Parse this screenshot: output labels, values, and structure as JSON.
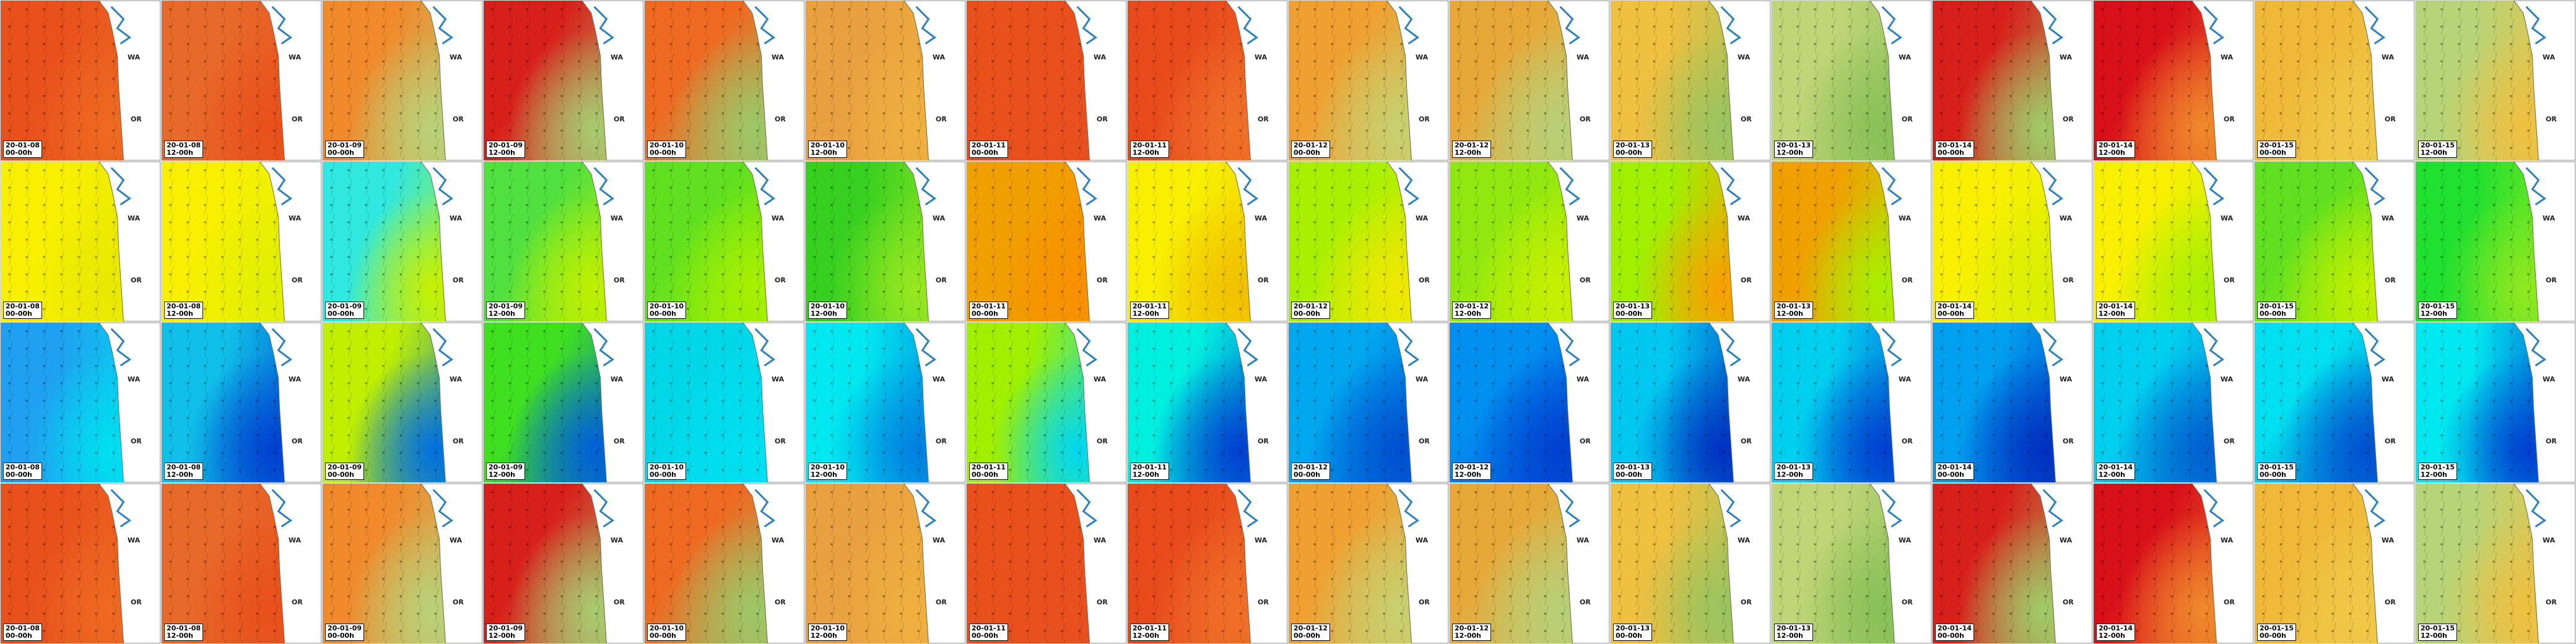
{
  "map_labels": {
    "state_north": "WA",
    "state_south": "OR"
  },
  "rows": [
    {
      "tiles": [
        {
          "date": "20-01-08",
          "time": "00-00h"
        },
        {
          "date": "20-01-08",
          "time": "12-00h"
        },
        {
          "date": "20-01-09",
          "time": "00-00h"
        },
        {
          "date": "20-01-09",
          "time": "12-00h"
        },
        {
          "date": "20-01-10",
          "time": "00-00h"
        },
        {
          "date": "20-01-10",
          "time": "12-00h"
        },
        {
          "date": "20-01-11",
          "time": "00-00h"
        },
        {
          "date": "20-01-11",
          "time": "12-00h"
        },
        {
          "date": "20-01-12",
          "time": "00-00h"
        },
        {
          "date": "20-01-12",
          "time": "12-00h"
        },
        {
          "date": "20-01-13",
          "time": "00-00h"
        },
        {
          "date": "20-01-13",
          "time": "12-00h"
        },
        {
          "date": "20-01-14",
          "time": "00-00h"
        },
        {
          "date": "20-01-14",
          "time": "12-00h"
        },
        {
          "date": "20-01-15",
          "time": "00-00h"
        },
        {
          "date": "20-01-15",
          "time": "12-00h"
        }
      ]
    },
    {
      "tiles": [
        {
          "date": "20-01-08",
          "time": "00-00h"
        },
        {
          "date": "20-01-08",
          "time": "12-00h"
        },
        {
          "date": "20-01-09",
          "time": "00-00h"
        },
        {
          "date": "20-01-09",
          "time": "12-00h"
        },
        {
          "date": "20-01-10",
          "time": "00-00h"
        },
        {
          "date": "20-01-10",
          "time": "12-00h"
        },
        {
          "date": "20-01-11",
          "time": "00-00h"
        },
        {
          "date": "20-01-11",
          "time": "12-00h"
        },
        {
          "date": "20-01-12",
          "time": "00-00h"
        },
        {
          "date": "20-01-12",
          "time": "12-00h"
        },
        {
          "date": "20-01-13",
          "time": "00-00h"
        },
        {
          "date": "20-01-13",
          "time": "12-00h"
        },
        {
          "date": "20-01-14",
          "time": "00-00h"
        },
        {
          "date": "20-01-14",
          "time": "12-00h"
        },
        {
          "date": "20-01-15",
          "time": "00-00h"
        },
        {
          "date": "20-01-15",
          "time": "12-00h"
        }
      ]
    },
    {
      "tiles": [
        {
          "date": "20-01-08",
          "time": "00-00h"
        },
        {
          "date": "20-01-08",
          "time": "12-00h"
        },
        {
          "date": "20-01-09",
          "time": "00-00h"
        },
        {
          "date": "20-01-09",
          "time": "12-00h"
        },
        {
          "date": "20-01-10",
          "time": "00-00h"
        },
        {
          "date": "20-01-10",
          "time": "12-00h"
        },
        {
          "date": "20-01-11",
          "time": "00-00h"
        },
        {
          "date": "20-01-11",
          "time": "12-00h"
        },
        {
          "date": "20-01-12",
          "time": "00-00h"
        },
        {
          "date": "20-01-12",
          "time": "12-00h"
        },
        {
          "date": "20-01-13",
          "time": "00-00h"
        },
        {
          "date": "20-01-13",
          "time": "12-00h"
        },
        {
          "date": "20-01-14",
          "time": "00-00h"
        },
        {
          "date": "20-01-14",
          "time": "12-00h"
        },
        {
          "date": "20-01-15",
          "time": "00-00h"
        },
        {
          "date": "20-01-15",
          "time": "12-00h"
        }
      ]
    },
    {
      "tiles": [
        {
          "date": "20-01-08",
          "time": "00-00h"
        },
        {
          "date": "20-01-08",
          "time": "12-00h"
        },
        {
          "date": "20-01-09",
          "time": "00-00h"
        },
        {
          "date": "20-01-09",
          "time": "12-00h"
        },
        {
          "date": "20-01-10",
          "time": "00-00h"
        },
        {
          "date": "20-01-10",
          "time": "12-00h"
        },
        {
          "date": "20-01-11",
          "time": "00-00h"
        },
        {
          "date": "20-01-11",
          "time": "12-00h"
        },
        {
          "date": "20-01-12",
          "time": "00-00h"
        },
        {
          "date": "20-01-12",
          "time": "12-00h"
        },
        {
          "date": "20-01-13",
          "time": "00-00h"
        },
        {
          "date": "20-01-13",
          "time": "12-00h"
        },
        {
          "date": "20-01-14",
          "time": "00-00h"
        },
        {
          "date": "20-01-14",
          "time": "12-00h"
        },
        {
          "date": "20-01-15",
          "time": "00-00h"
        },
        {
          "date": "20-01-15",
          "time": "12-00h"
        }
      ]
    }
  ]
}
